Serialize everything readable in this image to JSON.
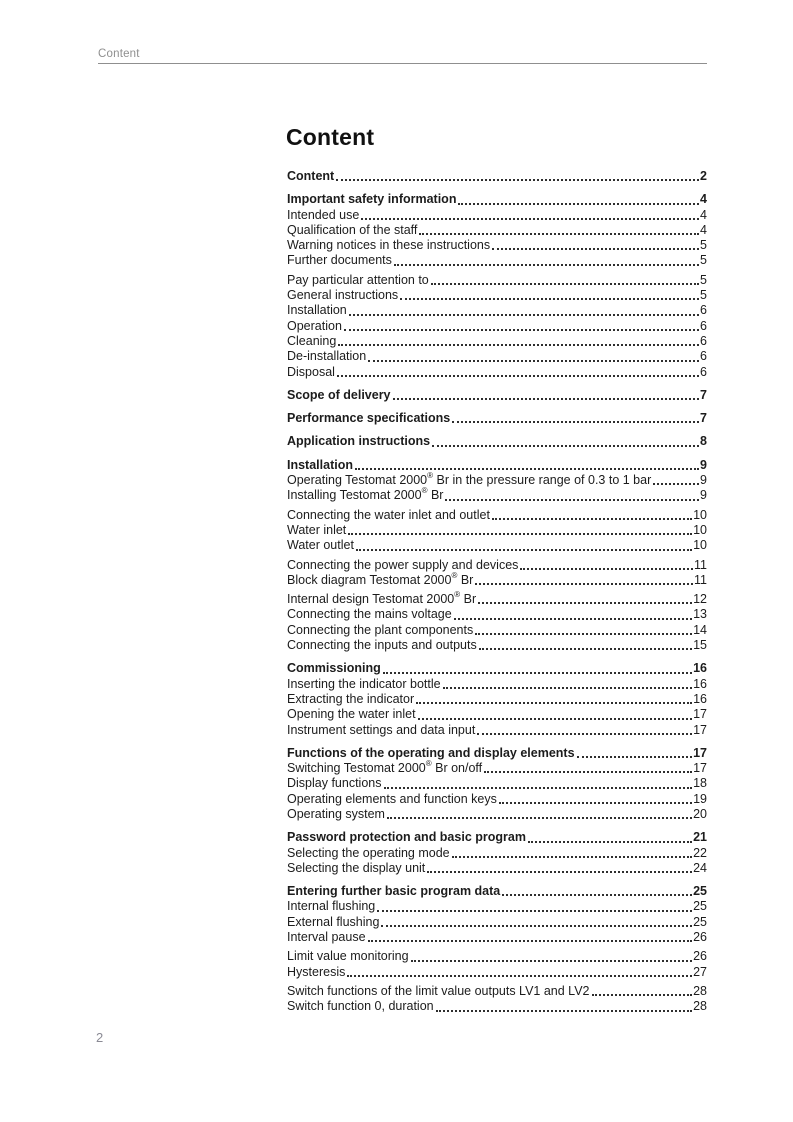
{
  "page": {
    "header": {
      "label": "Content"
    },
    "title": "Content",
    "footer": {
      "page_number": "2"
    }
  },
  "colors": {
    "text": "#1c1c1c",
    "muted_gray": "#8f8f8f",
    "header_rule": "#8f8f8f",
    "leader_dots": "#2e2e2e"
  },
  "toc": {
    "groups": [
      {
        "entries": [
          {
            "label": "Content",
            "page": "2",
            "bold": true
          }
        ]
      },
      {
        "entries": [
          {
            "label": "Important safety information",
            "page": "4",
            "bold": true
          },
          {
            "label": "Intended use",
            "page": "4"
          },
          {
            "label": "Qualification of the staff",
            "page": "4"
          },
          {
            "label": "Warning notices in these instructions",
            "page": "5"
          },
          {
            "label": "Further documents",
            "page": "5"
          },
          {
            "label": "Pay particular attention to",
            "page": "5",
            "gap_before": true
          },
          {
            "label": "General instructions",
            "page": "5"
          },
          {
            "label": "Installation",
            "page": "6"
          },
          {
            "label": "Operation",
            "page": "6"
          },
          {
            "label": "Cleaning",
            "page": "6"
          },
          {
            "label": "De-installation",
            "page": "6"
          },
          {
            "label": "Disposal",
            "page": "6"
          }
        ]
      },
      {
        "entries": [
          {
            "label": "Scope of delivery",
            "page": "7",
            "bold": true
          }
        ]
      },
      {
        "entries": [
          {
            "label": "Performance specifications",
            "page": "7",
            "bold": true
          }
        ]
      },
      {
        "entries": [
          {
            "label": "Application instructions",
            "page": "8",
            "bold": true
          }
        ]
      },
      {
        "entries": [
          {
            "label": "Installation",
            "page": "9",
            "bold": true
          },
          {
            "label": "Operating Testomat 2000® Br in the pressure range of 0.3 to 1 bar",
            "page": "9"
          },
          {
            "label": "Installing Testomat 2000® Br",
            "page": "9"
          },
          {
            "label": "Connecting the water inlet and outlet",
            "page": "10",
            "gap_before": true
          },
          {
            "label": "Water inlet",
            "page": "10"
          },
          {
            "label": "Water outlet",
            "page": "10"
          },
          {
            "label": "Connecting the power supply and devices",
            "page": "11",
            "gap_before": true
          },
          {
            "label": "Block diagram Testomat 2000® Br",
            "page": "11"
          },
          {
            "label": "Internal design Testomat 2000® Br",
            "page": "12",
            "gap_before": true
          },
          {
            "label": "Connecting the mains voltage",
            "page": "13"
          },
          {
            "label": "Connecting the plant components",
            "page": "14"
          },
          {
            "label": "Connecting the inputs and outputs",
            "page": "15"
          }
        ]
      },
      {
        "entries": [
          {
            "label": "Commissioning",
            "page": "16",
            "bold": true
          },
          {
            "label": "Inserting the indicator bottle",
            "page": "16"
          },
          {
            "label": "Extracting the indicator",
            "page": "16"
          },
          {
            "label": "Opening the water inlet",
            "page": "17"
          },
          {
            "label": "Instrument settings and data input",
            "page": "17"
          }
        ]
      },
      {
        "entries": [
          {
            "label": "Functions of the operating and display elements",
            "page": "17",
            "bold": true
          },
          {
            "label": "Switching Testomat 2000® Br on/off",
            "page": "17"
          },
          {
            "label": "Display functions",
            "page": "18"
          },
          {
            "label": "Operating elements and function keys",
            "page": "19"
          },
          {
            "label": "Operating system",
            "page": "20"
          }
        ]
      },
      {
        "entries": [
          {
            "label": "Password protection and basic program",
            "page": "21",
            "bold": true
          },
          {
            "label": "Selecting the operating mode",
            "page": "22"
          },
          {
            "label": "Selecting the display unit",
            "page": "24"
          }
        ]
      },
      {
        "entries": [
          {
            "label": "Entering further basic program data",
            "page": "25",
            "bold": true
          },
          {
            "label": "Internal flushing",
            "page": "25"
          },
          {
            "label": "External flushing",
            "page": "25"
          },
          {
            "label": "Interval pause",
            "page": "26"
          },
          {
            "label": "Limit value monitoring",
            "page": "26",
            "gap_before": true
          },
          {
            "label": "Hysteresis",
            "page": "27"
          },
          {
            "label": "Switch functions of the limit value outputs LV1 and LV2",
            "page": "28",
            "gap_before": true
          },
          {
            "label": "Switch function 0, duration",
            "page": "28"
          }
        ]
      }
    ]
  }
}
